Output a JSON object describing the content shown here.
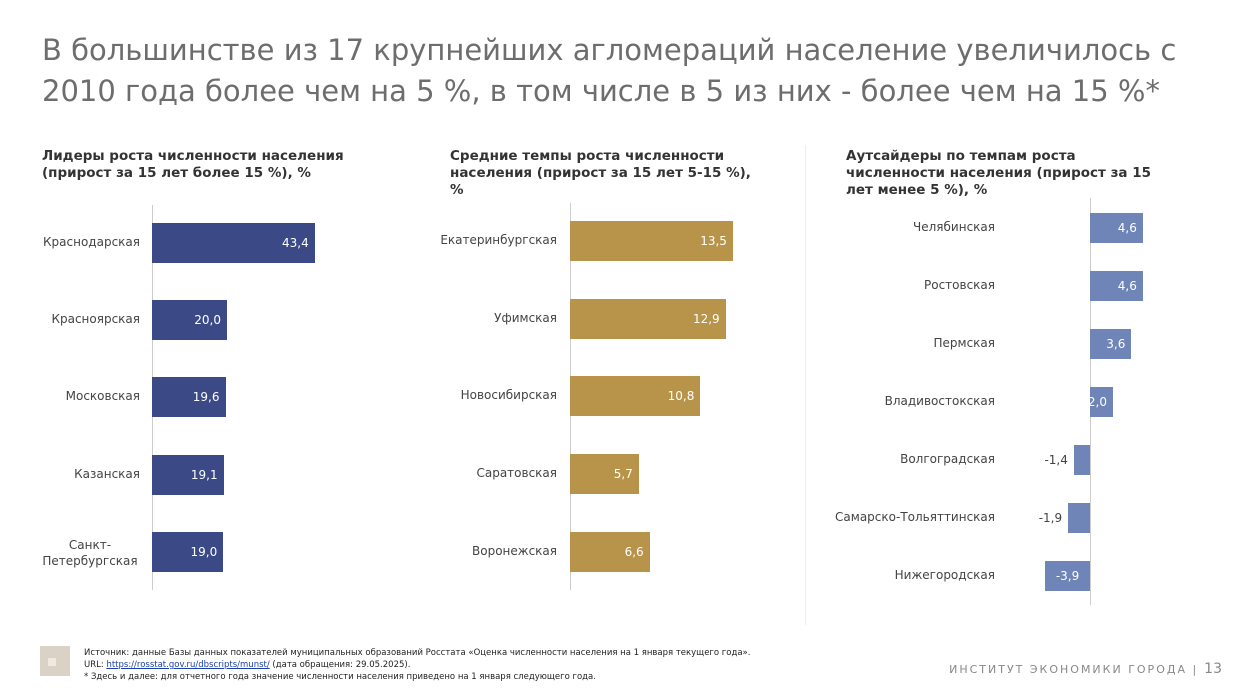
{
  "title": "В большинстве из 17 крупнейших агломераций население увеличилось с 2010 года более чем на 5 %, в том числе в 5 из них - более чем на 15 %*",
  "chart_data": [
    {
      "type": "bar",
      "orientation": "horizontal",
      "title": "Лидеры роста численности населения (прирост за 15 лет более 15 %), %",
      "categories": [
        "Краснодарская",
        "Красноярская",
        "Московская",
        "Казанская",
        "Санкт-Петербургская"
      ],
      "values": [
        43.4,
        20.0,
        19.6,
        19.1,
        19.0
      ],
      "labels": [
        "43,4",
        "20,0",
        "19,6",
        "19,1",
        "19,0"
      ],
      "color": "#3b4a86"
    },
    {
      "type": "bar",
      "orientation": "horizontal",
      "title": "Средние темпы роста численности населения (прирост за 15 лет 5-15 %), %",
      "categories": [
        "Екатеринбургская",
        "Уфимская",
        "Новосибирская",
        "Саратовская",
        "Воронежская"
      ],
      "values": [
        13.5,
        12.9,
        10.8,
        5.7,
        6.6
      ],
      "labels": [
        "13,5",
        "12,9",
        "10,8",
        "5,7",
        "6,6"
      ],
      "color": "#b7944a"
    },
    {
      "type": "bar",
      "orientation": "horizontal",
      "title": "Аутсайдеры по темпам роста численности населения (прирост за 15 лет менее 5 %), %",
      "categories": [
        "Челябинская",
        "Ростовская",
        "Пермская",
        "Владивостокская",
        "Волгоградская",
        "Самарско-Тольяттинская",
        "Нижегородская"
      ],
      "values": [
        4.6,
        4.6,
        3.6,
        2.0,
        -1.4,
        -1.9,
        -3.9
      ],
      "labels": [
        "4,6",
        "4,6",
        "3,6",
        "2,0",
        "-1,4",
        "-1,9",
        "-3,9"
      ],
      "color": "#6f85b8"
    }
  ],
  "source": {
    "line1": "Источник: данные Базы данных показателей муниципальных образований Росстата «Оценка численности населения на 1 января текущего года».",
    "url_prefix": "URL: ",
    "url": "https://rosstat.gov.ru/dbscripts/munst/",
    "url_suffix": " (дата обращения: 29.05.2025).",
    "note": "* Здесь и далее: для отчетного года значение численности населения приведено на 1 января следующего года."
  },
  "footer": {
    "org": "ИНСТИТУТ ЭКОНОМИКИ ГОРОДА |",
    "page": "13"
  }
}
